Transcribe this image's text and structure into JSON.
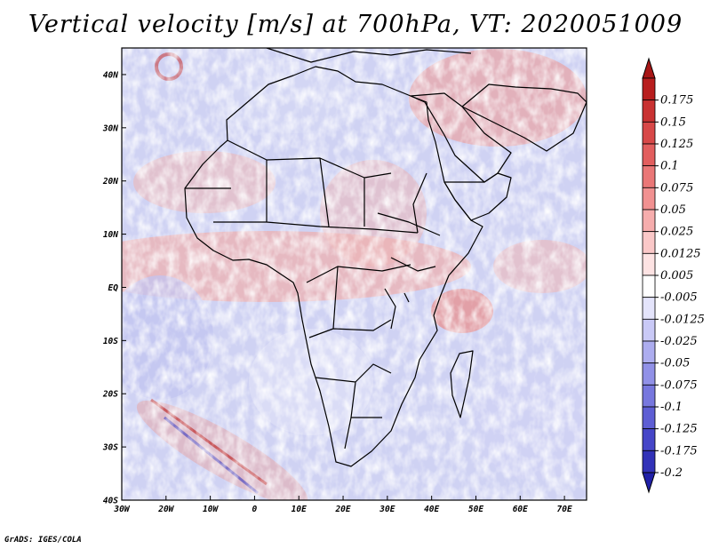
{
  "title": "Vertical velocity [m/s] at 700hPa, VT: 2020051009",
  "credit": "GrADS: IGES/COLA",
  "map": {
    "lon_range": [
      -30,
      75
    ],
    "lat_range": [
      -40,
      45
    ],
    "x_ticks": [
      {
        "lon": -30,
        "label": "30W"
      },
      {
        "lon": -20,
        "label": "20W"
      },
      {
        "lon": -10,
        "label": "10W"
      },
      {
        "lon": 0,
        "label": "0"
      },
      {
        "lon": 10,
        "label": "10E"
      },
      {
        "lon": 20,
        "label": "20E"
      },
      {
        "lon": 30,
        "label": "30E"
      },
      {
        "lon": 40,
        "label": "40E"
      },
      {
        "lon": 50,
        "label": "50E"
      },
      {
        "lon": 60,
        "label": "60E"
      },
      {
        "lon": 70,
        "label": "70E"
      }
    ],
    "y_ticks": [
      {
        "lat": 40,
        "label": "40N"
      },
      {
        "lat": 30,
        "label": "30N"
      },
      {
        "lat": 20,
        "label": "20N"
      },
      {
        "lat": 10,
        "label": "10N"
      },
      {
        "lat": 0,
        "label": "EQ"
      },
      {
        "lat": -10,
        "label": "10S"
      },
      {
        "lat": -20,
        "label": "20S"
      },
      {
        "lat": -30,
        "label": "30S"
      },
      {
        "lat": -40,
        "label": "40S"
      }
    ]
  },
  "colorbar": {
    "levels": [
      {
        "label": "0.175",
        "color": "#b81e1e"
      },
      {
        "label": "0.15",
        "color": "#c93232"
      },
      {
        "label": "0.125",
        "color": "#d84848"
      },
      {
        "label": "0.1",
        "color": "#e25e5e"
      },
      {
        "label": "0.075",
        "color": "#ea7777"
      },
      {
        "label": "0.05",
        "color": "#f19191"
      },
      {
        "label": "0.025",
        "color": "#f6adad"
      },
      {
        "label": "0.0125",
        "color": "#fac8c8"
      },
      {
        "label": "0.005",
        "color": "#fde3e3"
      },
      {
        "label": "-0.005",
        "color": "#ffffff"
      },
      {
        "label": "-0.0125",
        "color": "#e4e4fb"
      },
      {
        "label": "-0.025",
        "color": "#c9c9f6"
      },
      {
        "label": "-0.05",
        "color": "#adadef"
      },
      {
        "label": "-0.075",
        "color": "#9191e7"
      },
      {
        "label": "-0.1",
        "color": "#7777de"
      },
      {
        "label": "-0.125",
        "color": "#5e5ed4"
      },
      {
        "label": "-0.175",
        "color": "#4646c8"
      },
      {
        "label": "-0.2",
        "color": "#3232b8"
      }
    ],
    "top_cap_color": "#a81616",
    "bottom_cap_color": "#2020a8"
  },
  "colors": {
    "land_outline": "#000000",
    "positive": "#e06060",
    "negative": "#6868e0"
  }
}
